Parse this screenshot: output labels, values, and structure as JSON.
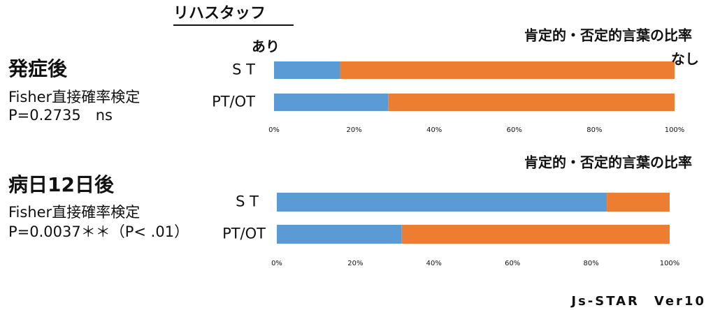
{
  "header": "リハスタッフ",
  "sections": [
    {
      "heading": "発症後",
      "test": "Fisher直接確率検定",
      "result": "P=0.2735　ns"
    },
    {
      "heading": "病日12日後",
      "test": "Fisher直接確率検定",
      "result": "P=0.0037＊＊（P< .01）"
    }
  ],
  "footer": "Js-STAR　Ver10",
  "chart_data": [
    {
      "type": "bar",
      "orientation": "horizontal",
      "stacked": true,
      "title": "肯定的・否定的言葉の比率",
      "categories": [
        "S T",
        "PT/OT"
      ],
      "series": [
        {
          "name": "あり",
          "color": "#5b9bd5",
          "values": [
            16.5,
            28.5
          ]
        },
        {
          "name": "なし",
          "color": "#ed7d31",
          "values": [
            83.5,
            71.5
          ]
        }
      ],
      "xlim": [
        0,
        100
      ],
      "xticks": [
        {
          "value": 0,
          "label": "0%"
        },
        {
          "value": 20,
          "label": "20%"
        },
        {
          "value": 40,
          "label": "40%"
        },
        {
          "value": 60,
          "label": "60%"
        },
        {
          "value": 80,
          "label": "80%"
        },
        {
          "value": 100,
          "label": "100%"
        }
      ]
    },
    {
      "type": "bar",
      "orientation": "horizontal",
      "stacked": true,
      "title": "肯定的・否定的言葉の比率",
      "categories": [
        "S T",
        "PT/OT"
      ],
      "series": [
        {
          "color": "#5b9bd5",
          "values": [
            84,
            31.8
          ]
        },
        {
          "color": "#ed7d31",
          "values": [
            16,
            68.2
          ]
        }
      ],
      "xlim": [
        0,
        100
      ],
      "xticks": [
        {
          "value": 0,
          "label": "0%"
        },
        {
          "value": 20,
          "label": "20%"
        },
        {
          "value": 40,
          "label": "40%"
        },
        {
          "value": 60,
          "label": "60%"
        },
        {
          "value": 80,
          "label": "80%"
        },
        {
          "value": 100,
          "label": "100%"
        }
      ]
    }
  ]
}
